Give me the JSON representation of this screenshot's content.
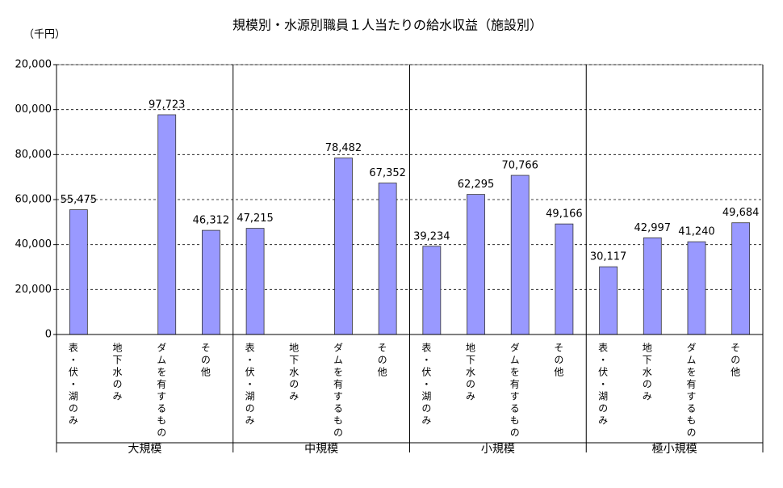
{
  "chart_data": {
    "type": "bar",
    "title": "規模別・水源別職員１人当たりの給水収益（施設別）",
    "y_unit": "（千円）",
    "color": "#9999ff",
    "ylim": [
      0,
      120000
    ],
    "yticks": [
      0,
      {
        "value": 20000,
        "label": "20,000"
      },
      {
        "value": 40000,
        "label": "40,000"
      },
      {
        "value": 60000,
        "label": "60,000"
      },
      {
        "value": 80000,
        "label": "80,000"
      },
      {
        "value": 100000,
        "label": "00,000"
      },
      {
        "value": 120000,
        "label": "20,000"
      }
    ],
    "grid": true,
    "groups": [
      {
        "name": "大規模",
        "categories": [
          "表・伏・湖のみ",
          "地下水のみ",
          "ダムを有するもの",
          "その他"
        ],
        "values": [
          55475,
          null,
          97723,
          46312
        ],
        "value_labels": [
          "55,475",
          null,
          "97,723",
          "46,312"
        ]
      },
      {
        "name": "中規模",
        "categories": [
          "表・伏・湖のみ",
          "地下水のみ",
          "ダムを有するもの",
          "その他"
        ],
        "values": [
          47215,
          null,
          78482,
          67352
        ],
        "value_labels": [
          "47,215",
          null,
          "78,482",
          "67,352"
        ]
      },
      {
        "name": "小規模",
        "categories": [
          "表・伏・湖のみ",
          "地下水のみ",
          "ダムを有するもの",
          "その他"
        ],
        "values": [
          39234,
          62295,
          70766,
          49166
        ],
        "value_labels": [
          "39,234",
          "62,295",
          "70,766",
          "49,166"
        ]
      },
      {
        "name": "極小規模",
        "categories": [
          "表・伏・湖のみ",
          "地下水のみ",
          "ダムを有するもの",
          "その他"
        ],
        "values": [
          30117,
          42997,
          41240,
          49684
        ],
        "value_labels": [
          "30,117",
          "42,997",
          "41,240",
          "49,684"
        ]
      }
    ]
  }
}
